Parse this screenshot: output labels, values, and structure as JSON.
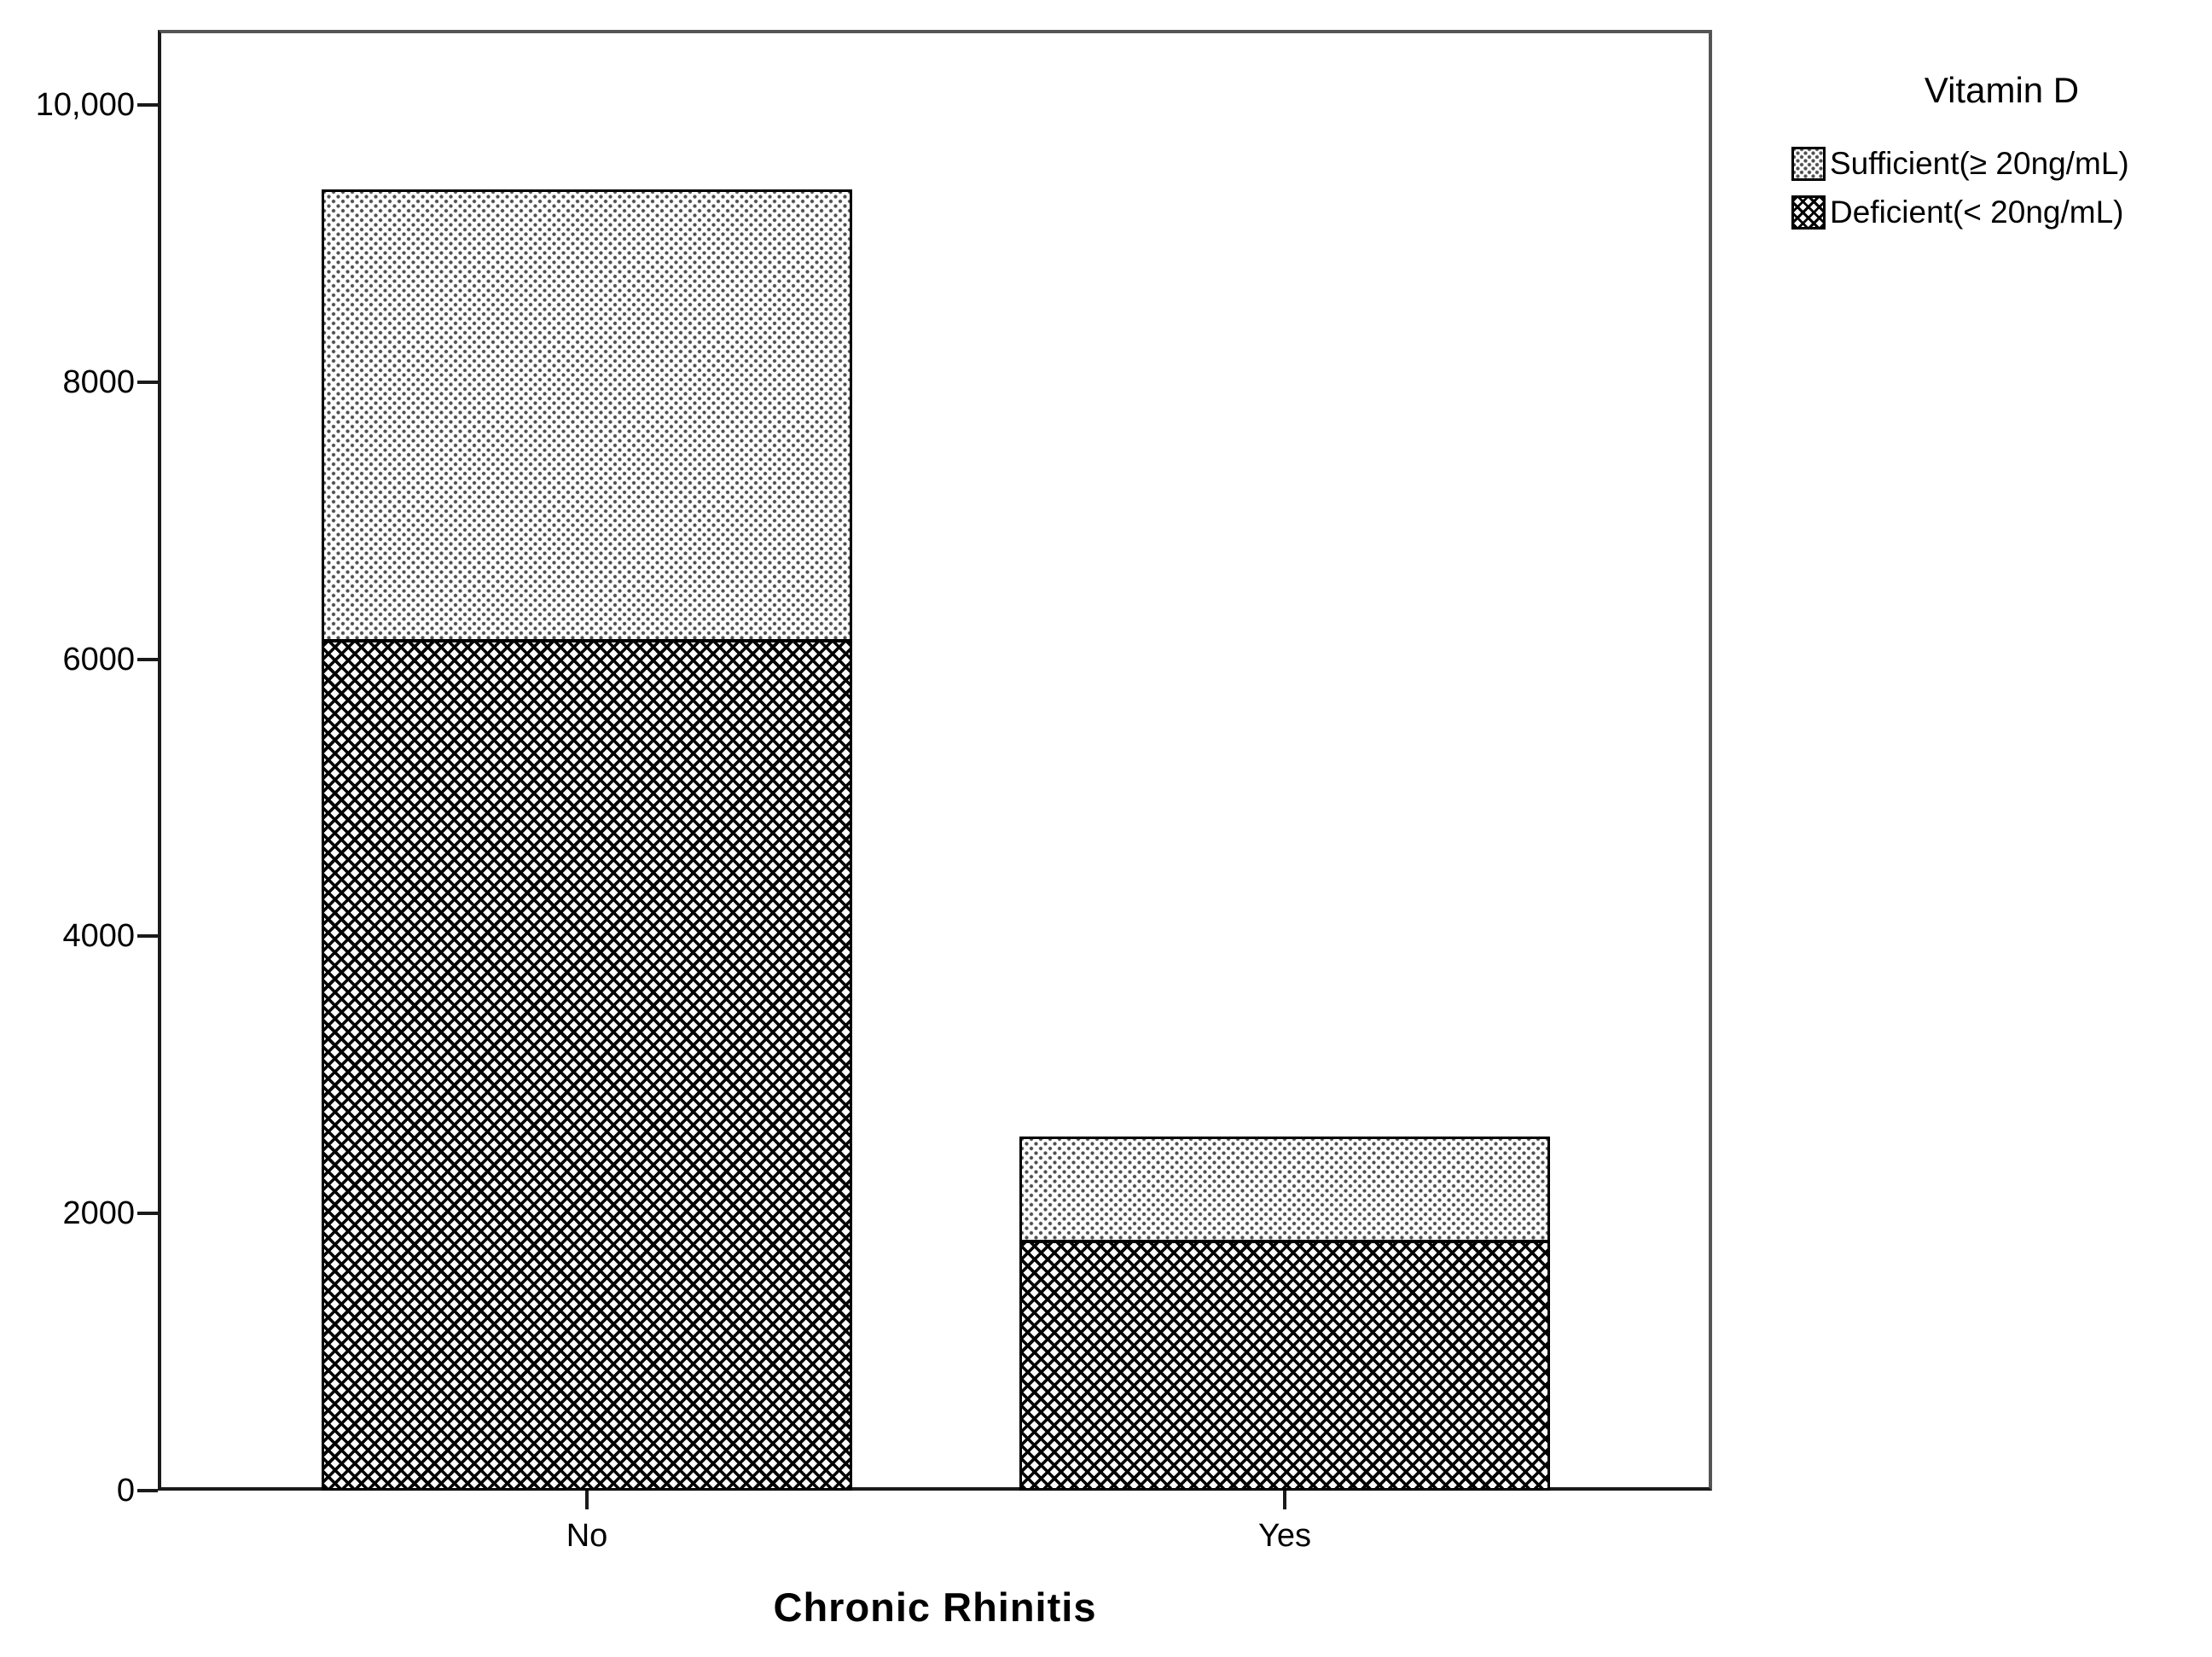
{
  "chart_data": {
    "type": "bar",
    "stacked": true,
    "title": "",
    "xlabel": "Chronic Rhinitis",
    "ylabel": "",
    "categories": [
      "No",
      "Yes"
    ],
    "series": [
      {
        "name": "Sufficient(≥ 20ng/mL)",
        "pattern": "light-dot-grid",
        "values": [
          3255,
          755
        ]
      },
      {
        "name": "Deficient(< 20ng/mL)",
        "pattern": "dark-crosshatch",
        "values": [
          6130,
          1800
        ]
      }
    ],
    "totals": [
      9385,
      2555
    ],
    "ylim": [
      0,
      10500
    ],
    "yticks": [
      0,
      2000,
      4000,
      6000,
      8000,
      10000
    ],
    "ytick_labels": [
      "0",
      "2000",
      "4000",
      "6000",
      "8000",
      "10,000"
    ],
    "grid": "off",
    "legend": {
      "title": "Vitamin D",
      "position": "outside-top-right",
      "entries": [
        "Sufficient(≥ 20ng/mL)",
        "Deficient(< 20ng/mL)"
      ]
    }
  },
  "colors": {
    "ink": "#000000",
    "frame_shadow": "#555555",
    "dot_gray": "#4e4e4e",
    "background": "#ffffff"
  }
}
